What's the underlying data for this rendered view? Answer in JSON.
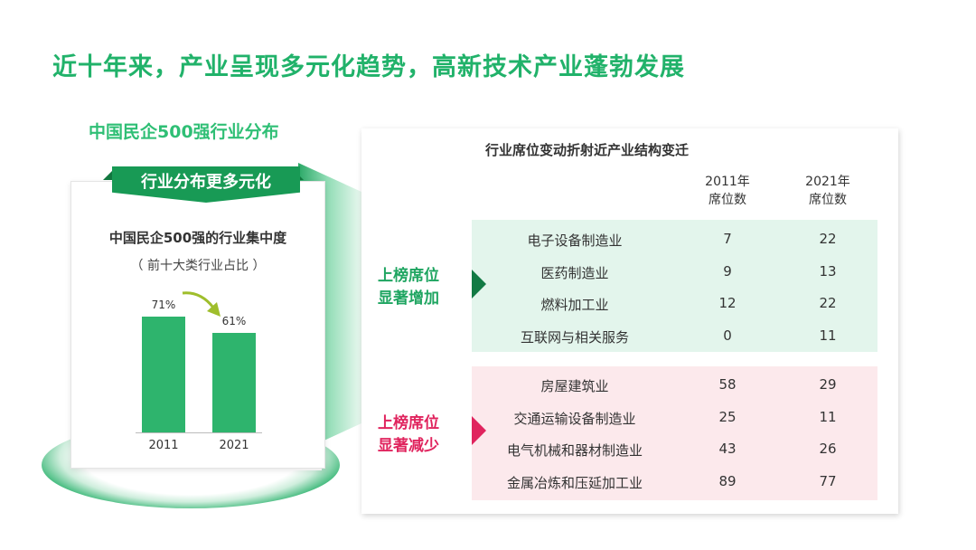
{
  "headline": "近十年来，产业呈现多元化趋势，高新技术产业蓬勃发展",
  "left": {
    "subhead": "中国民企500强行业分布",
    "ribbon": "行业分布更多元化",
    "card_title": "中国民企500强的行业集中度",
    "card_subtitle": "（ 前十大类行业占比 ）",
    "chart_data": {
      "type": "bar",
      "title": "中国民企500强的行业集中度",
      "subtitle": "（ 前十大类行业占比 ）",
      "categories": [
        "2011",
        "2021"
      ],
      "values": [
        71,
        61
      ],
      "value_labels": [
        "71%",
        "61%"
      ],
      "ylim": [
        0,
        100
      ],
      "grid": false,
      "colors": [
        "#2eb46d"
      ]
    }
  },
  "right": {
    "title": "行业席位变动折射近产业结构变迁",
    "columns": [
      "2011年\n席位数",
      "2021年\n席位数"
    ],
    "increase_label": "上榜席位\n显著增加",
    "decrease_label": "上榜席位\n显著减少",
    "increase_rows": [
      {
        "name": "电子设备制造业",
        "y2011": "7",
        "y2021": "22"
      },
      {
        "name": "医药制造业",
        "y2011": "9",
        "y2021": "13"
      },
      {
        "name": "燃料加工业",
        "y2011": "12",
        "y2021": "22"
      },
      {
        "name": "互联网与相关服务",
        "y2011": "0",
        "y2021": "11"
      }
    ],
    "decrease_rows": [
      {
        "name": "房屋建筑业",
        "y2011": "58",
        "y2021": "29"
      },
      {
        "name": "交通运输设备制造业",
        "y2011": "25",
        "y2021": "11"
      },
      {
        "name": "电气机械和器材制造业",
        "y2011": "43",
        "y2021": "26"
      },
      {
        "name": "金属冶炼和压延加工业",
        "y2011": "89",
        "y2021": "77"
      }
    ]
  },
  "colors": {
    "brand_green": "#21b26a",
    "bar_green": "#2eb46d",
    "increase_bg": "#e3f5ec",
    "decrease_bg": "#fce9ec",
    "decrease_red": "#e0245e"
  }
}
